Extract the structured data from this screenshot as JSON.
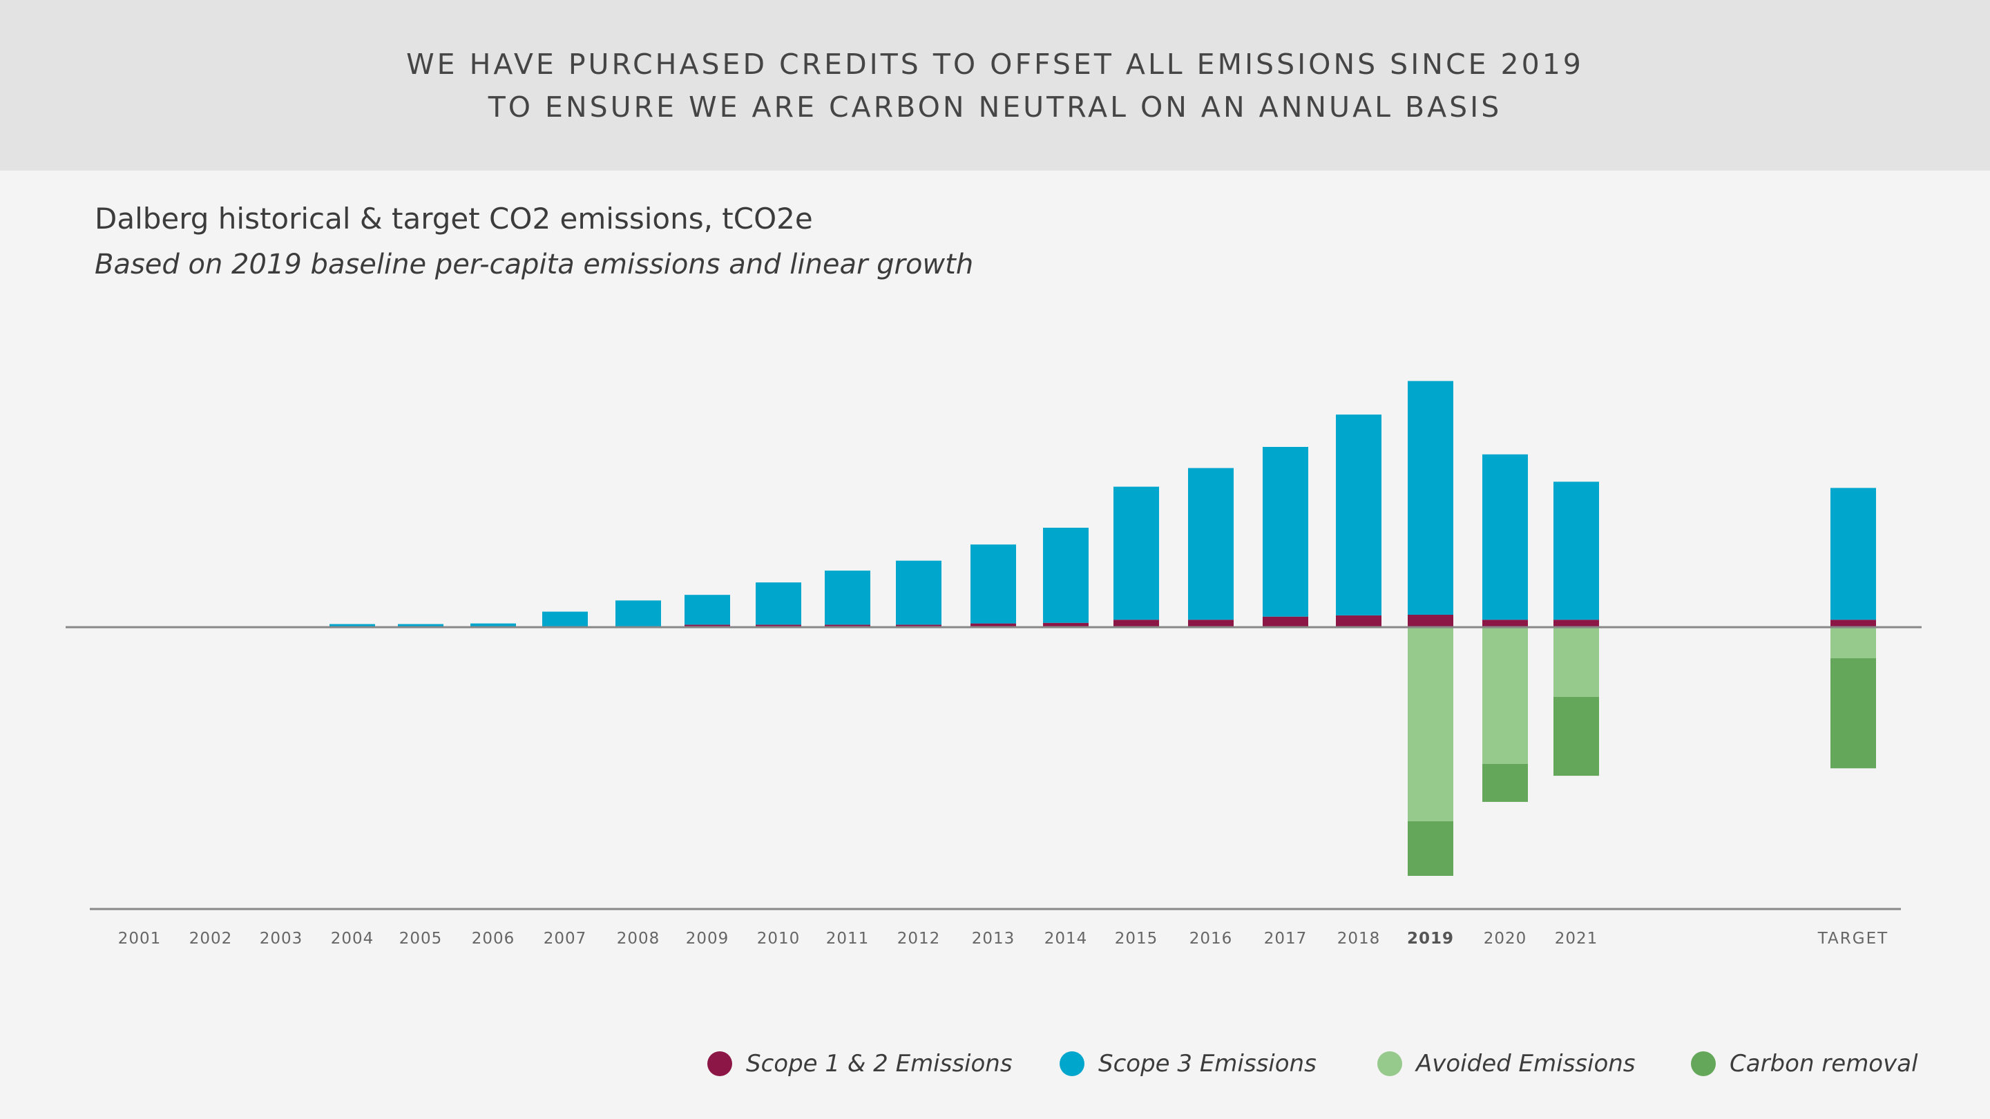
{
  "banner": {
    "line1": "WE HAVE PURCHASED CREDITS TO OFFSET ALL EMISSIONS SINCE 2019",
    "line2": "TO ENSURE WE ARE CARBON NEUTRAL ON AN ANNUAL BASIS"
  },
  "chart_data": {
    "type": "bar",
    "stacked": true,
    "title": "Dalberg historical & target CO2 emissions, tCO2e",
    "subtitle": "Based on 2019 baseline per-capita emissions and linear growth",
    "categories": [
      "2001",
      "2002",
      "2003",
      "2004",
      "2005",
      "2006",
      "2007",
      "2008",
      "2009",
      "2010",
      "2011",
      "2012",
      "2013",
      "2014",
      "2015",
      "2016",
      "2017",
      "2018",
      "2019",
      "2020",
      "2021",
      "TARGET"
    ],
    "highlight_category": "2019",
    "ylim": [
      -400,
      400
    ],
    "grid": false,
    "legend_position": "bottom-right",
    "colors": {
      "scope12": "#8c1746",
      "scope3": "#00a6cc",
      "avoided": "#96c98c",
      "removal": "#65a75a",
      "axis": "#888888"
    },
    "series": [
      {
        "name": "Scope 1 & 2 Emissions",
        "key": "scope12",
        "values": [
          0,
          0,
          0,
          0,
          0,
          0,
          0,
          0,
          4,
          4,
          4,
          4,
          6,
          7,
          12,
          12,
          17,
          19,
          20,
          12,
          12,
          12
        ]
      },
      {
        "name": "Scope 3 Emissions",
        "key": "scope3",
        "values": [
          0,
          0,
          0,
          5,
          5,
          6,
          25,
          43,
          48,
          68,
          87,
          103,
          127,
          153,
          214,
          244,
          273,
          323,
          376,
          266,
          222,
          212
        ]
      },
      {
        "name": "Avoided Emissions",
        "key": "avoided",
        "values": [
          0,
          0,
          0,
          0,
          0,
          0,
          0,
          0,
          0,
          0,
          0,
          0,
          0,
          0,
          0,
          0,
          0,
          0,
          -312,
          -220,
          -112,
          -50
        ]
      },
      {
        "name": "Carbon removal",
        "key": "removal",
        "values": [
          0,
          0,
          0,
          0,
          0,
          0,
          0,
          0,
          0,
          0,
          0,
          0,
          0,
          0,
          0,
          0,
          0,
          0,
          -88,
          -61,
          -127,
          -177
        ]
      }
    ]
  }
}
